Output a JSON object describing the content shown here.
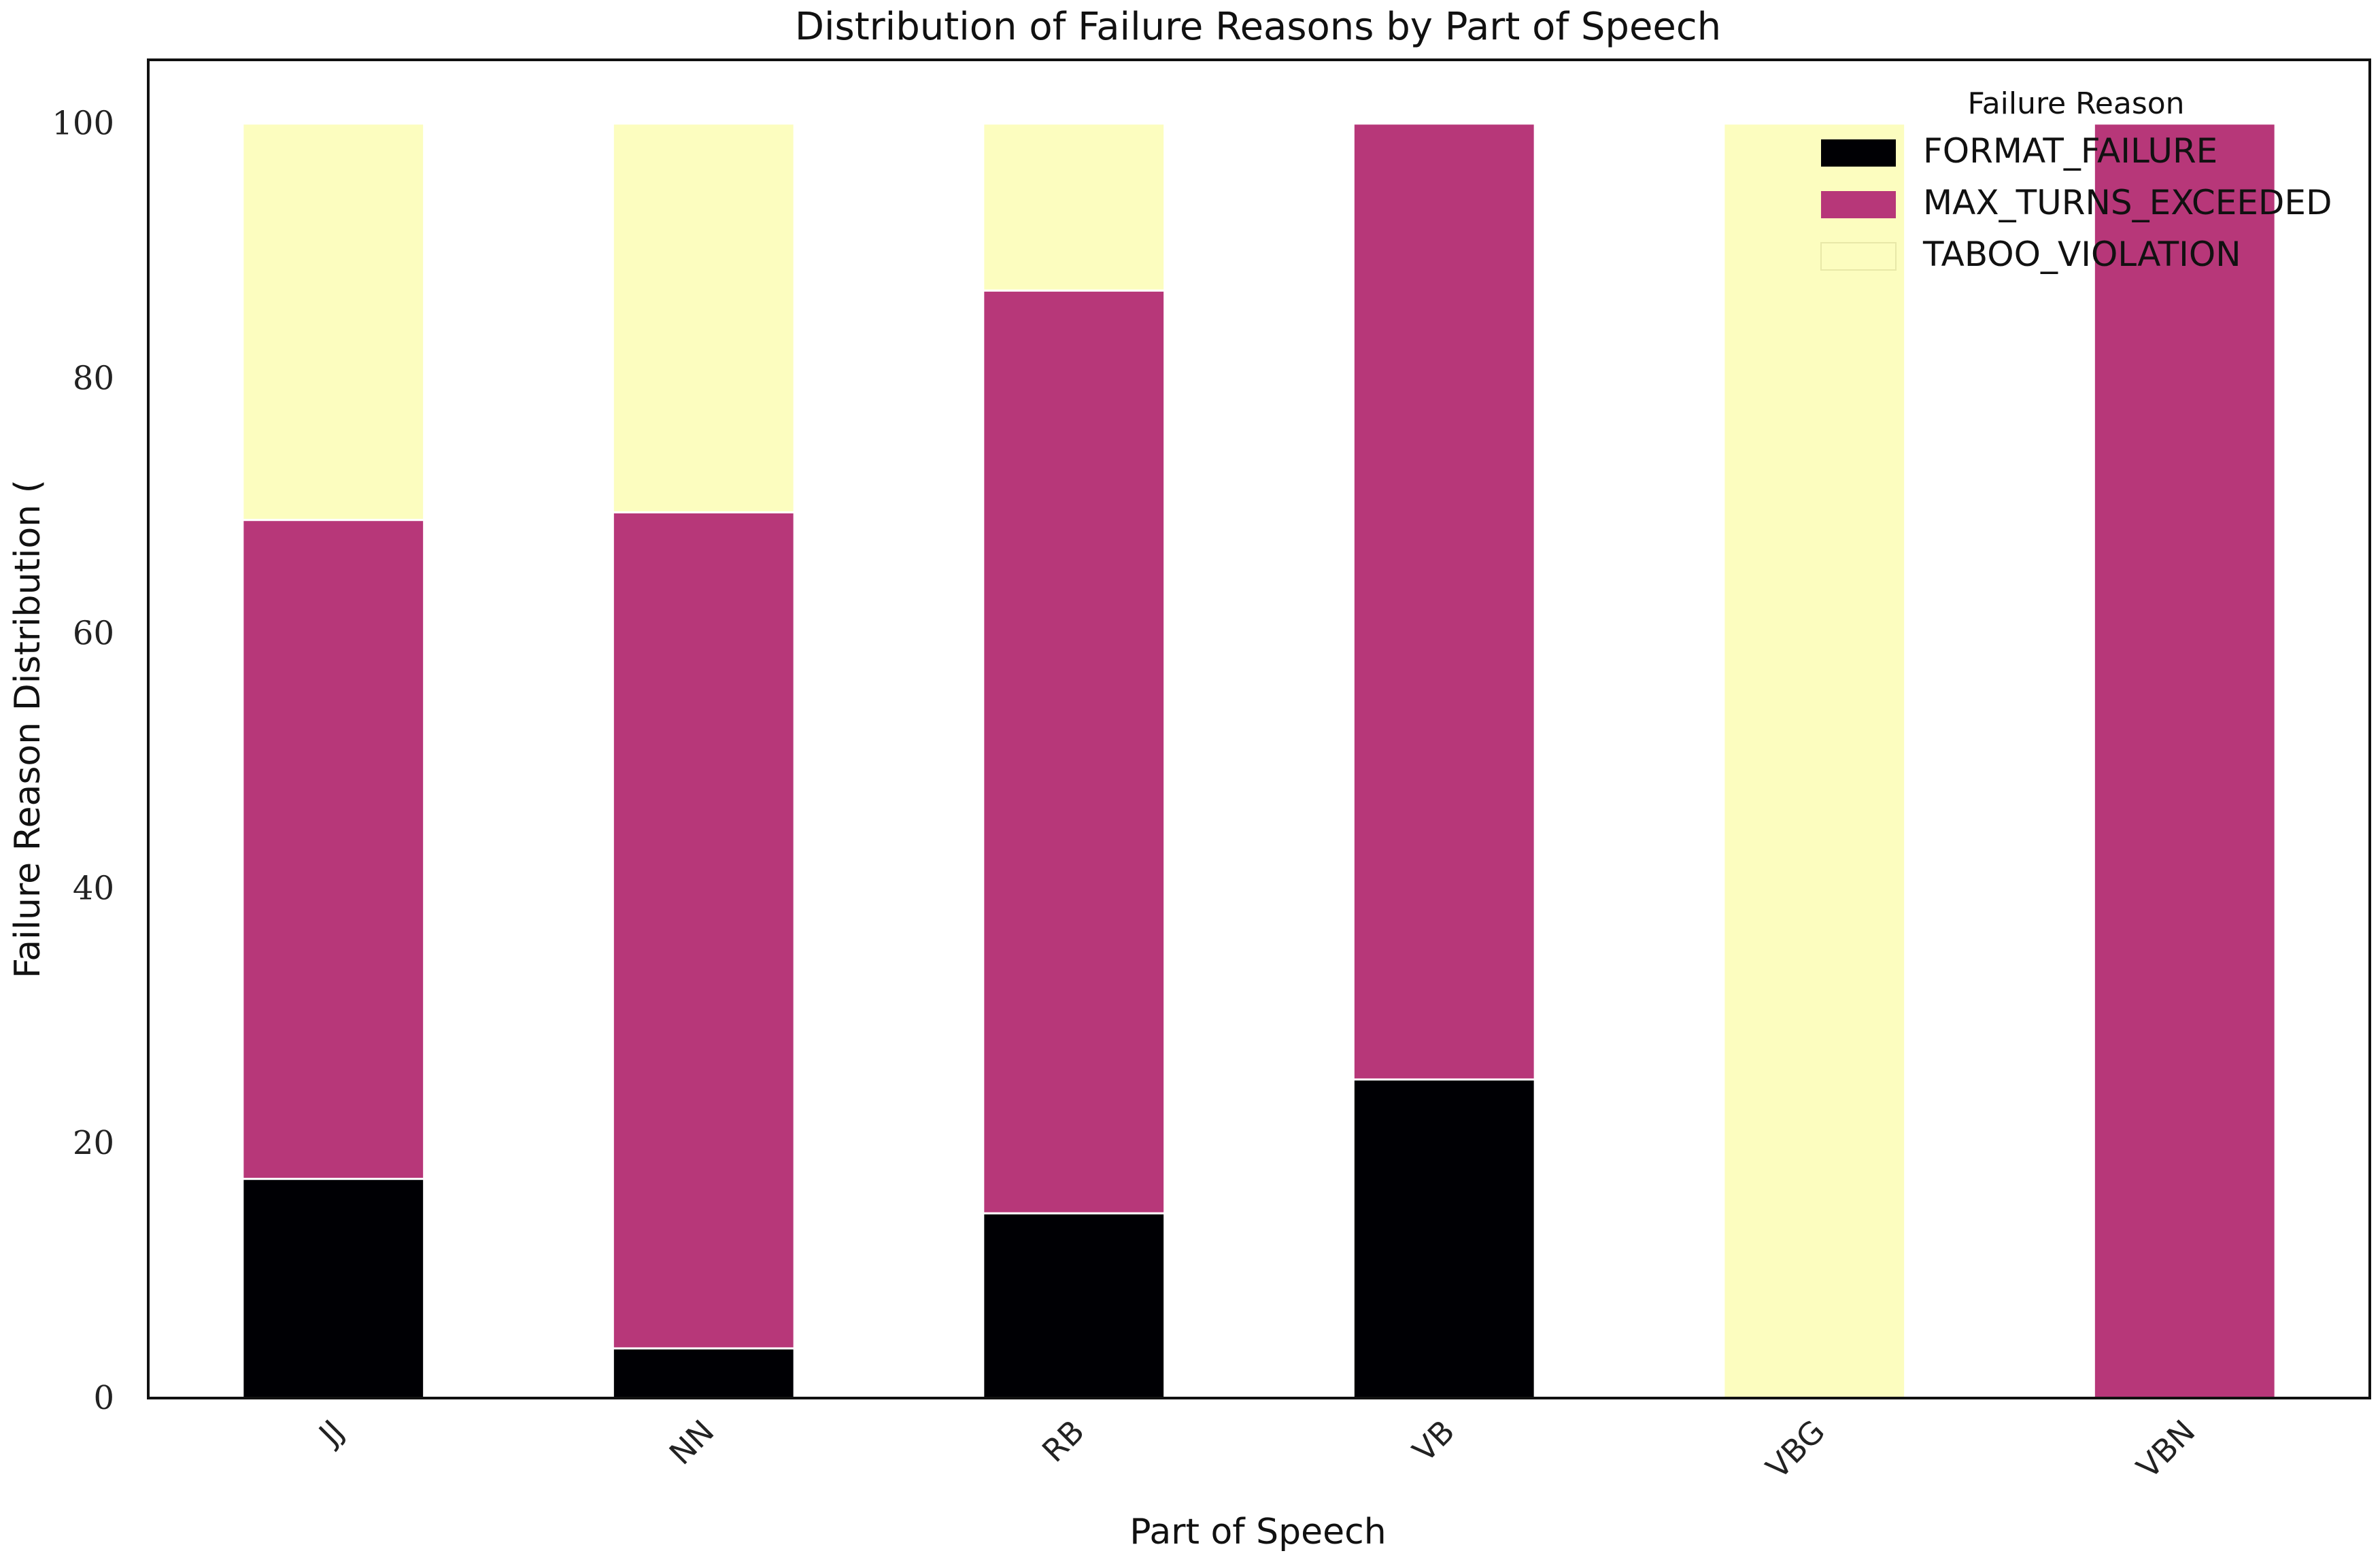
{
  "chart_data": {
    "type": "bar",
    "stacked": true,
    "title": "Distribution of Failure Reasons by Part of Speech",
    "xlabel": "Part of Speech",
    "ylabel": "Failure Reason Distribution (",
    "ylim": [
      0,
      105
    ],
    "yticks": [
      0,
      20,
      40,
      60,
      80,
      100
    ],
    "grid": false,
    "legend": {
      "title": "Failure Reason",
      "position": "top-right"
    },
    "categories": [
      "JJ",
      "NN",
      "RB",
      "VB",
      "VBG",
      "VBN"
    ],
    "series": [
      {
        "name": "FORMAT_FAILURE",
        "color": "#000004",
        "values": [
          17.2,
          3.9,
          14.5,
          25.0,
          0,
          0
        ]
      },
      {
        "name": "MAX_TURNS_EXCEEDED",
        "color": "#b73779",
        "values": [
          51.7,
          65.6,
          72.4,
          75.0,
          0,
          100
        ]
      },
      {
        "name": "TABOO_VIOLATION",
        "color": "#fcfdbf",
        "values": [
          31.1,
          30.5,
          13.1,
          0,
          100,
          0
        ]
      }
    ]
  }
}
